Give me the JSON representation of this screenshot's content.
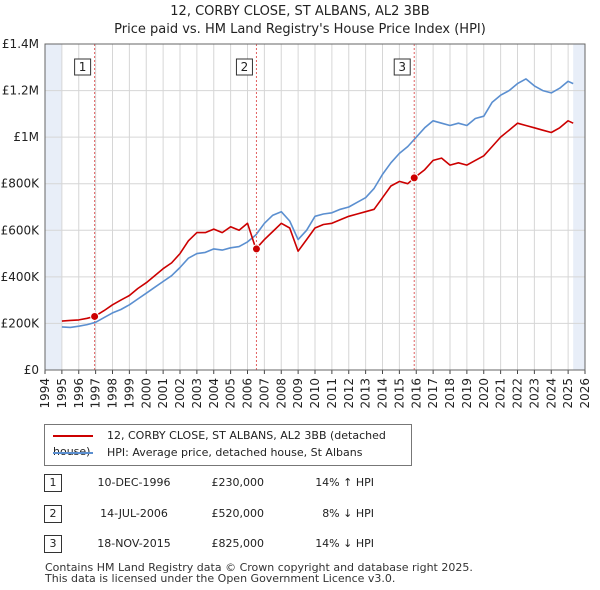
{
  "title_line1": "12, CORBY CLOSE, ST ALBANS, AL2 3BB",
  "title_line2": "Price paid vs. HM Land Registry's House Price Index (HPI)",
  "colors": {
    "property": "#cc0000",
    "hpi": "#5b8fd0",
    "marker_line": "#e06060",
    "shade": "#e8eef8"
  },
  "chart_data": {
    "type": "line",
    "title": "12, CORBY CLOSE, ST ALBANS, AL2 3BB - Price paid vs. HM Land Registry's House Price Index (HPI)",
    "xlabel": "",
    "ylabel": "",
    "xlim": [
      1994,
      2026
    ],
    "ylim": [
      0,
      1400000
    ],
    "x_ticks": [
      "1994",
      "1995",
      "1996",
      "1997",
      "1998",
      "1999",
      "2000",
      "2001",
      "2002",
      "2003",
      "2004",
      "2005",
      "2006",
      "2007",
      "2008",
      "2009",
      "2010",
      "2011",
      "2012",
      "2013",
      "2014",
      "2015",
      "2016",
      "2017",
      "2018",
      "2019",
      "2020",
      "2021",
      "2022",
      "2023",
      "2024",
      "2025",
      "2026"
    ],
    "y_ticks": [
      "£0",
      "£200K",
      "£400K",
      "£600K",
      "£800K",
      "£1M",
      "£1.2M",
      "£1.4M"
    ],
    "y_tick_values": [
      0,
      200000,
      400000,
      600000,
      800000,
      1000000,
      1200000,
      1400000
    ],
    "data_start": 1995.0,
    "data_end": 2025.3,
    "series": [
      {
        "name": "12, CORBY CLOSE, ST ALBANS, AL2 3BB (detached house)",
        "x": [
          1995.0,
          1995.5,
          1996.0,
          1996.5,
          1996.94,
          1997.5,
          1998.0,
          1998.5,
          1999.0,
          1999.5,
          2000.0,
          2000.5,
          2001.0,
          2001.5,
          2002.0,
          2002.5,
          2003.0,
          2003.5,
          2004.0,
          2004.5,
          2005.0,
          2005.5,
          2006.0,
          2006.5,
          2007.0,
          2007.5,
          2008.0,
          2008.5,
          2009.0,
          2009.5,
          2010.0,
          2010.5,
          2011.0,
          2011.5,
          2012.0,
          2012.5,
          2013.0,
          2013.5,
          2014.0,
          2014.5,
          2015.0,
          2015.5,
          2015.88,
          2016.5,
          2017.0,
          2017.5,
          2018.0,
          2018.5,
          2019.0,
          2019.5,
          2020.0,
          2020.5,
          2021.0,
          2021.5,
          2022.0,
          2022.5,
          2023.0,
          2023.5,
          2024.0,
          2024.5,
          2025.0,
          2025.3
        ],
        "values": [
          210000,
          213000,
          215000,
          222000,
          230000,
          255000,
          280000,
          300000,
          320000,
          350000,
          375000,
          405000,
          435000,
          460000,
          500000,
          555000,
          590000,
          590000,
          605000,
          590000,
          615000,
          600000,
          630000,
          520000,
          560000,
          595000,
          630000,
          610000,
          510000,
          560000,
          610000,
          625000,
          630000,
          645000,
          660000,
          670000,
          680000,
          690000,
          740000,
          790000,
          810000,
          800000,
          825000,
          860000,
          900000,
          910000,
          880000,
          890000,
          880000,
          900000,
          920000,
          960000,
          1000000,
          1030000,
          1060000,
          1050000,
          1040000,
          1030000,
          1020000,
          1040000,
          1070000,
          1060000
        ]
      },
      {
        "name": "HPI: Average price, detached house, St Albans",
        "x": [
          1995.0,
          1995.5,
          1996.0,
          1996.5,
          1997.0,
          1997.5,
          1998.0,
          1998.5,
          1999.0,
          1999.5,
          2000.0,
          2000.5,
          2001.0,
          2001.5,
          2002.0,
          2002.5,
          2003.0,
          2003.5,
          2004.0,
          2004.5,
          2005.0,
          2005.5,
          2006.0,
          2006.5,
          2007.0,
          2007.5,
          2008.0,
          2008.5,
          2009.0,
          2009.5,
          2010.0,
          2010.5,
          2011.0,
          2011.5,
          2012.0,
          2012.5,
          2013.0,
          2013.5,
          2014.0,
          2014.5,
          2015.0,
          2015.5,
          2016.0,
          2016.5,
          2017.0,
          2017.5,
          2018.0,
          2018.5,
          2019.0,
          2019.5,
          2020.0,
          2020.5,
          2021.0,
          2021.5,
          2022.0,
          2022.5,
          2023.0,
          2023.5,
          2024.0,
          2024.5,
          2025.0,
          2025.3
        ],
        "values": [
          185000,
          183000,
          188000,
          195000,
          205000,
          225000,
          245000,
          260000,
          280000,
          305000,
          330000,
          355000,
          380000,
          405000,
          440000,
          480000,
          500000,
          505000,
          520000,
          515000,
          525000,
          530000,
          550000,
          580000,
          630000,
          665000,
          680000,
          640000,
          560000,
          600000,
          660000,
          670000,
          675000,
          690000,
          700000,
          720000,
          740000,
          780000,
          840000,
          890000,
          930000,
          960000,
          1000000,
          1040000,
          1070000,
          1060000,
          1050000,
          1060000,
          1050000,
          1080000,
          1090000,
          1150000,
          1180000,
          1200000,
          1230000,
          1250000,
          1220000,
          1200000,
          1190000,
          1210000,
          1240000,
          1230000
        ]
      }
    ],
    "sale_markers": [
      {
        "id": "1",
        "x": 1996.94,
        "value": 230000
      },
      {
        "id": "2",
        "x": 2006.53,
        "value": 520000
      },
      {
        "id": "3",
        "x": 2015.88,
        "value": 825000
      }
    ]
  },
  "legend": {
    "property_label": "12, CORBY CLOSE, ST ALBANS, AL2 3BB (detached house)",
    "hpi_label": "HPI: Average price, detached house, St Albans"
  },
  "transactions": [
    {
      "id": "1",
      "date": "10-DEC-1996",
      "price": "£230,000",
      "hpi": "14% ↑ HPI"
    },
    {
      "id": "2",
      "date": "14-JUL-2006",
      "price": "£520,000",
      "hpi": "8% ↓ HPI"
    },
    {
      "id": "3",
      "date": "18-NOV-2015",
      "price": "£825,000",
      "hpi": "14% ↓ HPI"
    }
  ],
  "footer_line1": "Contains HM Land Registry data © Crown copyright and database right 2025.",
  "footer_line2": "This data is licensed under the Open Government Licence v3.0."
}
